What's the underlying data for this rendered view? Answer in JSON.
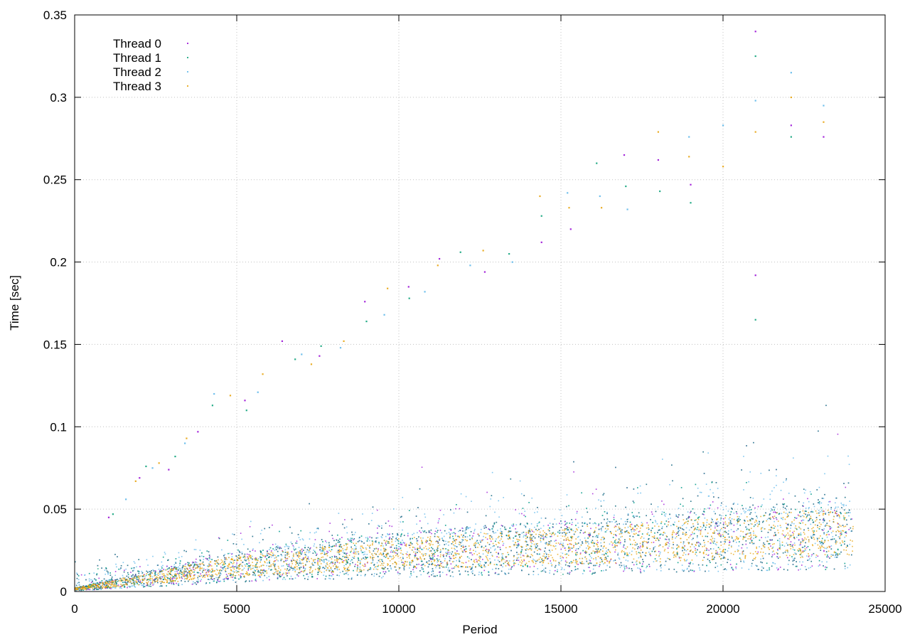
{
  "chart_data": {
    "type": "scatter",
    "xlabel": "Period",
    "ylabel": "Time [sec]",
    "xlim": [
      0,
      25000
    ],
    "ylim": [
      0,
      0.35
    ],
    "x_ticks": [
      0,
      5000,
      10000,
      15000,
      20000,
      25000
    ],
    "y_ticks": [
      0,
      0.05,
      0.1,
      0.15,
      0.2,
      0.25,
      0.3,
      0.35
    ],
    "x_tick_labels": [
      "0",
      "5000",
      "10000",
      "15000",
      "20000",
      "25000"
    ],
    "y_tick_labels": [
      "0",
      "0.05",
      "0.1",
      "0.15",
      "0.2",
      "0.25",
      "0.3",
      "0.35"
    ],
    "grid": true,
    "legend_position": "top-left",
    "series": [
      {
        "name": "Thread 0",
        "color": "#9400d3",
        "marker": "dot"
      },
      {
        "name": "Thread 1",
        "color": "#009e73",
        "marker": "plus"
      },
      {
        "name": "Thread 2",
        "color": "#56b4e9",
        "marker": "asterisk"
      },
      {
        "name": "Thread 3",
        "color": "#e69f00",
        "marker": "square"
      }
    ],
    "x_max_data": 24000,
    "trend": {
      "description": "time grows with period",
      "baseline_band": [
        [
          0,
          0.002
        ],
        [
          5000,
          0.017
        ],
        [
          10000,
          0.025
        ],
        [
          15000,
          0.03
        ],
        [
          20000,
          0.035
        ],
        [
          24000,
          0.04
        ]
      ]
    },
    "outlier_points": [
      [
        1050,
        0.045
      ],
      [
        1180,
        0.047
      ],
      [
        1580,
        0.056
      ],
      [
        1880,
        0.067
      ],
      [
        2000,
        0.069
      ],
      [
        2200,
        0.076
      ],
      [
        2400,
        0.075
      ],
      [
        2600,
        0.078
      ],
      [
        2900,
        0.074
      ],
      [
        3100,
        0.082
      ],
      [
        3400,
        0.09
      ],
      [
        3450,
        0.093
      ],
      [
        3800,
        0.097
      ],
      [
        4250,
        0.113
      ],
      [
        4300,
        0.12
      ],
      [
        4800,
        0.119
      ],
      [
        5250,
        0.116
      ],
      [
        5300,
        0.11
      ],
      [
        5650,
        0.121
      ],
      [
        5800,
        0.132
      ],
      [
        6400,
        0.152
      ],
      [
        6800,
        0.141
      ],
      [
        7000,
        0.144
      ],
      [
        7300,
        0.138
      ],
      [
        7550,
        0.143
      ],
      [
        7600,
        0.149
      ],
      [
        8200,
        0.148
      ],
      [
        8300,
        0.152
      ],
      [
        8950,
        0.176
      ],
      [
        9000,
        0.164
      ],
      [
        9550,
        0.168
      ],
      [
        9650,
        0.184
      ],
      [
        10300,
        0.185
      ],
      [
        10320,
        0.178
      ],
      [
        10800,
        0.182
      ],
      [
        11200,
        0.198
      ],
      [
        11250,
        0.202
      ],
      [
        11900,
        0.206
      ],
      [
        12200,
        0.198
      ],
      [
        12600,
        0.207
      ],
      [
        12650,
        0.194
      ],
      [
        13400,
        0.205
      ],
      [
        13500,
        0.2
      ],
      [
        14350,
        0.24
      ],
      [
        14400,
        0.212
      ],
      [
        14400,
        0.228
      ],
      [
        15200,
        0.242
      ],
      [
        15250,
        0.233
      ],
      [
        15300,
        0.22
      ],
      [
        16100,
        0.26
      ],
      [
        16200,
        0.24
      ],
      [
        16250,
        0.233
      ],
      [
        16950,
        0.265
      ],
      [
        17000,
        0.246
      ],
      [
        17050,
        0.232
      ],
      [
        18000,
        0.279
      ],
      [
        18000,
        0.262
      ],
      [
        18050,
        0.243
      ],
      [
        18950,
        0.276
      ],
      [
        18950,
        0.264
      ],
      [
        19000,
        0.247
      ],
      [
        19000,
        0.236
      ],
      [
        20000,
        0.283
      ],
      [
        20000,
        0.258
      ],
      [
        21000,
        0.34
      ],
      [
        21000,
        0.325
      ],
      [
        21000,
        0.298
      ],
      [
        21000,
        0.279
      ],
      [
        21000,
        0.192
      ],
      [
        21000,
        0.165
      ],
      [
        22100,
        0.315
      ],
      [
        22100,
        0.3
      ],
      [
        22100,
        0.283
      ],
      [
        22100,
        0.276
      ],
      [
        23100,
        0.295
      ],
      [
        23100,
        0.285
      ],
      [
        23100,
        0.276
      ]
    ]
  }
}
